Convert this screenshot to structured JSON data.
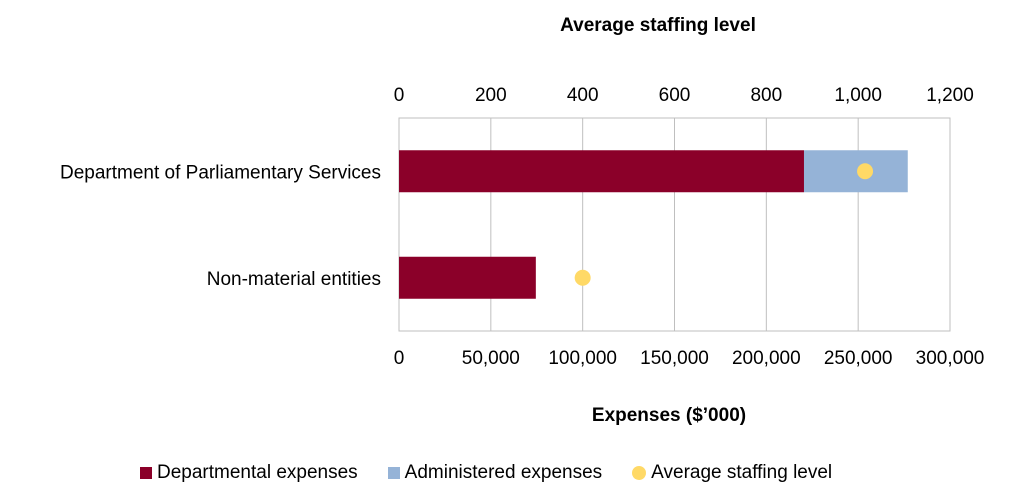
{
  "chart_data": {
    "type": "bar",
    "orientation": "horizontal",
    "stacked": true,
    "categories": [
      "Department of  Parliamentary Services",
      "Non-material entities"
    ],
    "series": [
      {
        "name": "Departmental expenses",
        "values": [
          220500,
          74500
        ],
        "color": "#8B0029"
      },
      {
        "name": "Administered expenses",
        "values": [
          56500,
          0
        ],
        "color": "#95B3D7"
      }
    ],
    "secondary_series": {
      "name": "Average staffing level",
      "values": [
        1015,
        400
      ],
      "color": "#FFD966",
      "marker": "circle"
    },
    "xlabel": "Expenses ($’000)",
    "xlim": [
      0,
      300000
    ],
    "x_ticks": [
      "0",
      "50,000",
      "100,000",
      "150,000",
      "200,000",
      "250,000",
      "300,000"
    ],
    "x2label": "Average staffing level",
    "x2lim": [
      0,
      1200
    ],
    "x2_ticks": [
      "0",
      "200",
      "400",
      "600",
      "800",
      "1,000",
      "1,200"
    ],
    "grid": true,
    "legend_position": "bottom"
  },
  "legend": {
    "departmental": "Departmental expenses",
    "administered": "Administered expenses",
    "staffing": "Average staffing level"
  }
}
